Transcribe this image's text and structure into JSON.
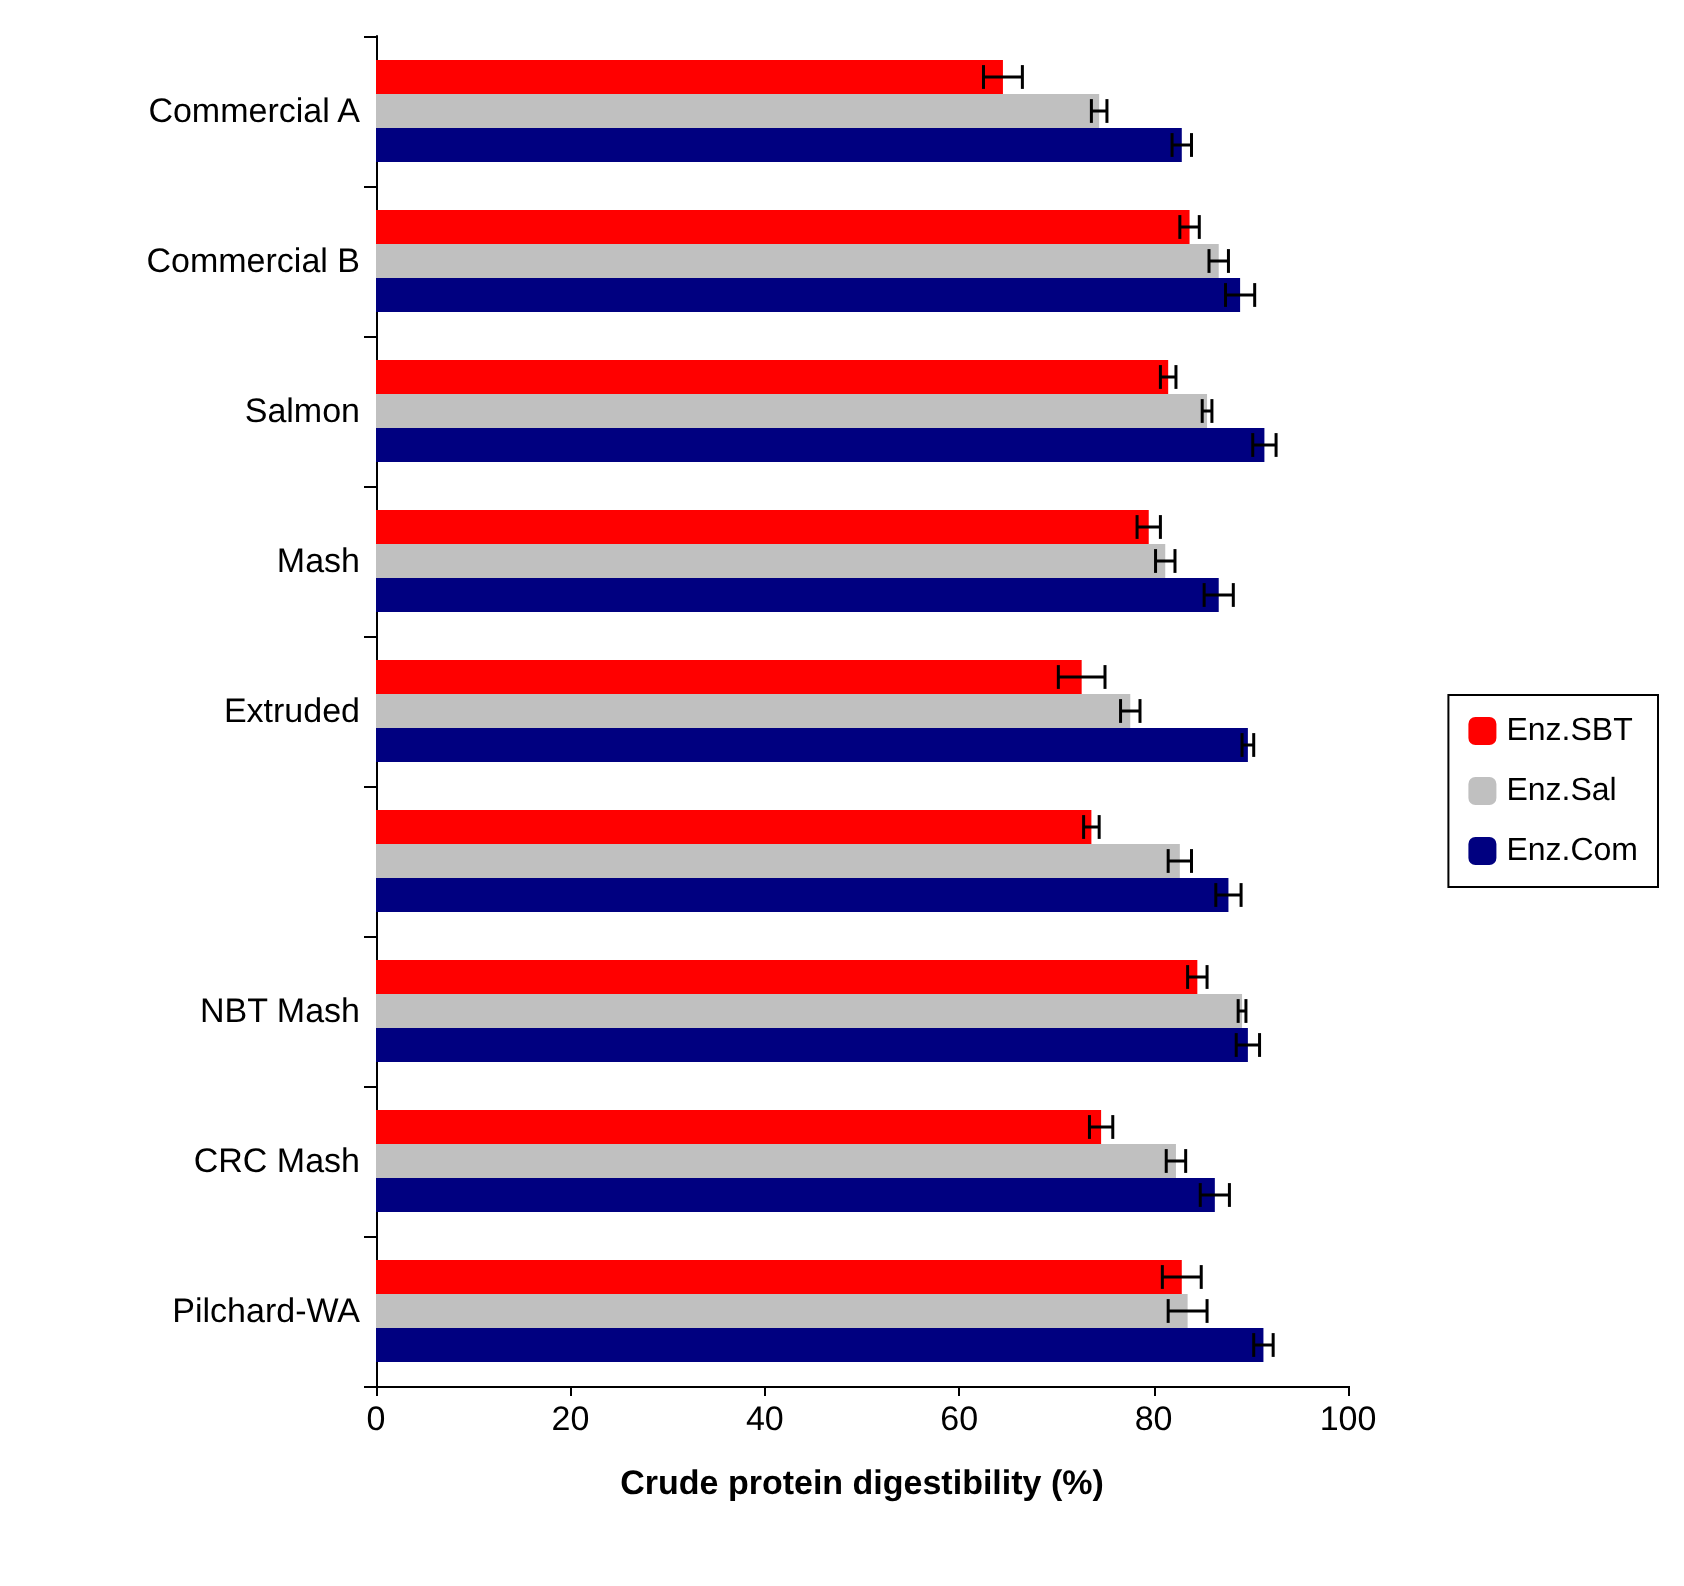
{
  "chart_data": {
    "type": "bar",
    "orientation": "horizontal",
    "xlabel": "Crude protein digestibility (%)",
    "categories": [
      "Commercial A",
      "Commercial B",
      "Salmon",
      "Mash",
      "Extruded",
      null,
      "NBT Mash",
      "CRC Mash",
      "Pilchard-WA"
    ],
    "series": [
      {
        "name": "Enz.SBT",
        "color": "#ff0000",
        "values": [
          64.5,
          83.7,
          81.5,
          79.5,
          72.6,
          73.6,
          84.5,
          74.6,
          82.9
        ],
        "errors": [
          2,
          1,
          0.8,
          1.2,
          2.4,
          0.8,
          1,
          1.2,
          2
        ]
      },
      {
        "name": "Enz.Sal",
        "color": "#c0c0c0",
        "values": [
          74.4,
          86.7,
          85.5,
          81.2,
          77.6,
          82.7,
          89.1,
          82.3,
          83.5
        ],
        "errors": [
          0.8,
          1,
          0.5,
          1,
          1,
          1.2,
          0.4,
          1,
          2
        ]
      },
      {
        "name": "Enz.Com",
        "color": "#000080",
        "values": [
          82.9,
          88.9,
          91.4,
          86.7,
          89.7,
          87.7,
          89.7,
          86.3,
          91.3
        ],
        "errors": [
          1,
          1.5,
          1.2,
          1.5,
          0.6,
          1.3,
          1.2,
          1.5,
          1
        ]
      }
    ],
    "xlim": [
      0,
      100
    ],
    "xticks": [
      0,
      20,
      40,
      60,
      80,
      100
    ],
    "grid": false,
    "legend": "right"
  }
}
